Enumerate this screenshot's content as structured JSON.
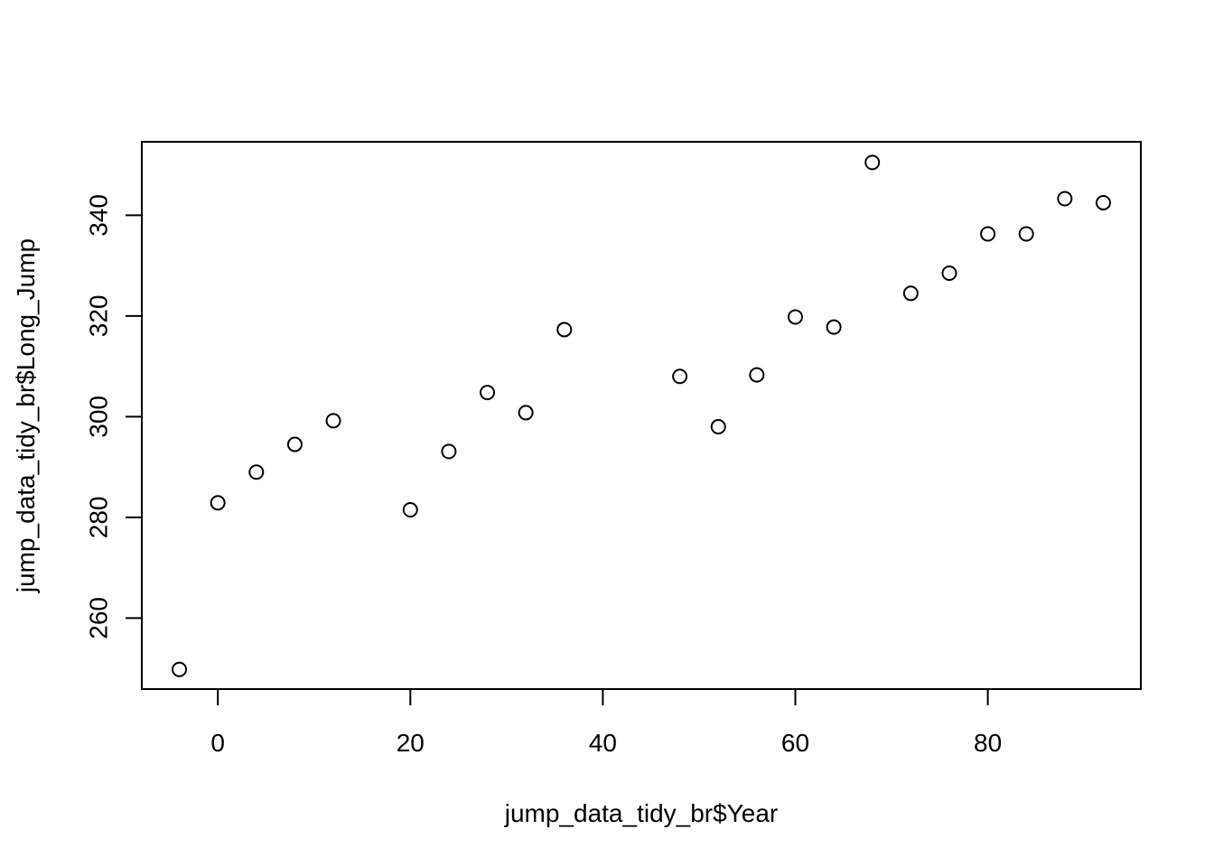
{
  "chart_data": {
    "type": "scatter",
    "title": "",
    "xlabel": "jump_data_tidy_br$Year",
    "ylabel": "jump_data_tidy_br$Long_Jump",
    "xlim": [
      -7.9,
      95.9
    ],
    "ylim": [
      245.9,
      354.6
    ],
    "xticks": [
      0,
      20,
      40,
      60,
      80
    ],
    "yticks": [
      260,
      280,
      300,
      320,
      340
    ],
    "grid": false,
    "marker": "open-circle",
    "color": "#000000",
    "points": [
      {
        "x": -4,
        "y": 249.8
      },
      {
        "x": 0,
        "y": 282.9
      },
      {
        "x": 4,
        "y": 289.0
      },
      {
        "x": 8,
        "y": 294.5
      },
      {
        "x": 12,
        "y": 299.2
      },
      {
        "x": 20,
        "y": 281.5
      },
      {
        "x": 24,
        "y": 293.1
      },
      {
        "x": 28,
        "y": 304.8
      },
      {
        "x": 32,
        "y": 300.8
      },
      {
        "x": 36,
        "y": 317.3
      },
      {
        "x": 48,
        "y": 308.0
      },
      {
        "x": 52,
        "y": 298.0
      },
      {
        "x": 56,
        "y": 308.3
      },
      {
        "x": 60,
        "y": 319.8
      },
      {
        "x": 64,
        "y": 317.8
      },
      {
        "x": 68,
        "y": 350.5
      },
      {
        "x": 72,
        "y": 324.5
      },
      {
        "x": 76,
        "y": 328.5
      },
      {
        "x": 80,
        "y": 336.3
      },
      {
        "x": 84,
        "y": 336.3
      },
      {
        "x": 88,
        "y": 343.3
      },
      {
        "x": 92,
        "y": 342.5
      }
    ]
  }
}
